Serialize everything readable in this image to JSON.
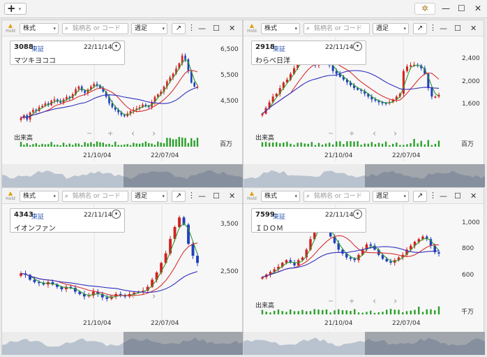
{
  "topbar": {
    "add_label": "+",
    "add_caret": "▾",
    "settings_icon": "gear-icon",
    "minimize": "—",
    "maximize": "☐",
    "close": "✕"
  },
  "toolbar": {
    "type_label": "株式",
    "search_placeholder": "銘柄名 or コード",
    "period_label": "週足",
    "hold_label": "Hold"
  },
  "controls": {
    "zoom_out": "−",
    "zoom_in": "+",
    "prev": "‹",
    "next": "›"
  },
  "colors": {
    "up": "#d42020",
    "down": "#2040c0",
    "ma_short": "#2a9a2a",
    "ma_mid": "#d83030",
    "ma_long": "#3030c0",
    "volume": "#2aa02a"
  },
  "panels": [
    {
      "code": "3088",
      "exchange": "東証",
      "date": "22/11/14",
      "name": "マツキヨココ",
      "y_ticks": [
        "6,500",
        "5,500",
        "4,500"
      ],
      "volume_label": "出来高",
      "unit": "百万",
      "x_ticks": [
        "21/10/04",
        "22/07/04"
      ],
      "chart_data": {
        "type": "candlestick",
        "y_range": [
          3500,
          6800
        ],
        "series": [
          3880,
          3990,
          3820,
          4100,
          4200,
          4150,
          4300,
          4350,
          4450,
          4380,
          4550,
          4600,
          4520,
          4470,
          4600,
          4700,
          4650,
          4800,
          5000,
          5100,
          4950,
          4850,
          4980,
          5100,
          5200,
          5150,
          5050,
          4900,
          4700,
          4450,
          4300,
          4200,
          4100,
          4000,
          3950,
          4050,
          4150,
          4200,
          4250,
          4300,
          4400,
          4350,
          4300,
          4500,
          4700,
          4800,
          4900,
          5100,
          5300,
          5450,
          5600,
          5800,
          6000,
          6300,
          6150,
          5700,
          5250,
          5100,
          5100
        ]
      }
    },
    {
      "code": "2918",
      "exchange": "東証",
      "date": "22/11/14",
      "name": "わらべ日洋",
      "y_ticks": [
        "2,400",
        "2,000",
        "1,600"
      ],
      "volume_label": "出来高",
      "unit": "百万",
      "x_ticks": [
        "21/10/04",
        "22/07/04"
      ],
      "chart_data": {
        "type": "candlestick",
        "y_range": [
          1200,
          2700
        ],
        "series": [
          1450,
          1550,
          1650,
          1750,
          1800,
          1900,
          2000,
          2050,
          2150,
          2250,
          2350,
          2420,
          2470,
          2450,
          2400,
          2300,
          2350,
          2450,
          2400,
          2300,
          2200,
          2150,
          2100,
          2050,
          2000,
          1950,
          1900,
          1870,
          1850,
          1800,
          1750,
          1700,
          1680,
          1650,
          1640,
          1630,
          1650,
          1700,
          1750,
          1800,
          2200,
          2280,
          2300,
          2310,
          2300,
          2250,
          2150,
          1900,
          1750,
          1750,
          1780
        ]
      }
    },
    {
      "code": "4343",
      "exchange": "東証",
      "date": "22/11/14",
      "name": "イオンファン",
      "y_ticks": [
        "3,500",
        "2,500"
      ],
      "volume_label": "",
      "unit": "",
      "x_ticks": [
        "21/10/04",
        "22/07/04"
      ],
      "chart_data": {
        "type": "candlestick",
        "y_range": [
          1800,
          3800
        ],
        "series": [
          2480,
          2450,
          2350,
          2300,
          2280,
          2250,
          2300,
          2250,
          2200,
          2150,
          2200,
          2180,
          2100,
          2050,
          2000,
          2020,
          2100,
          2050,
          1980,
          1950,
          2000,
          2050,
          2020,
          2000,
          2050,
          2080,
          2100,
          2120,
          2200,
          2350,
          2500,
          2700,
          2900,
          3200,
          3450,
          3650,
          3500,
          3100,
          2850,
          2700
        ]
      }
    },
    {
      "code": "7599",
      "exchange": "東証",
      "date": "22/11/14",
      "name": "ＩＤＯＭ",
      "y_ticks": [
        "1,000",
        "800",
        "600"
      ],
      "volume_label": "出来高",
      "unit": "千万",
      "x_ticks": [
        "21/10/04",
        "22/07/04"
      ],
      "chart_data": {
        "type": "candlestick",
        "y_range": [
          450,
          1100
        ],
        "series": [
          590,
          610,
          630,
          650,
          670,
          700,
          720,
          700,
          680,
          720,
          740,
          800,
          880,
          950,
          1020,
          1000,
          960,
          900,
          850,
          800,
          770,
          740,
          730,
          720,
          760,
          800,
          840,
          830,
          800,
          760,
          730,
          710,
          700,
          720,
          740,
          760,
          800,
          830,
          860,
          880,
          900,
          880,
          830,
          780,
          770
        ]
      }
    }
  ]
}
